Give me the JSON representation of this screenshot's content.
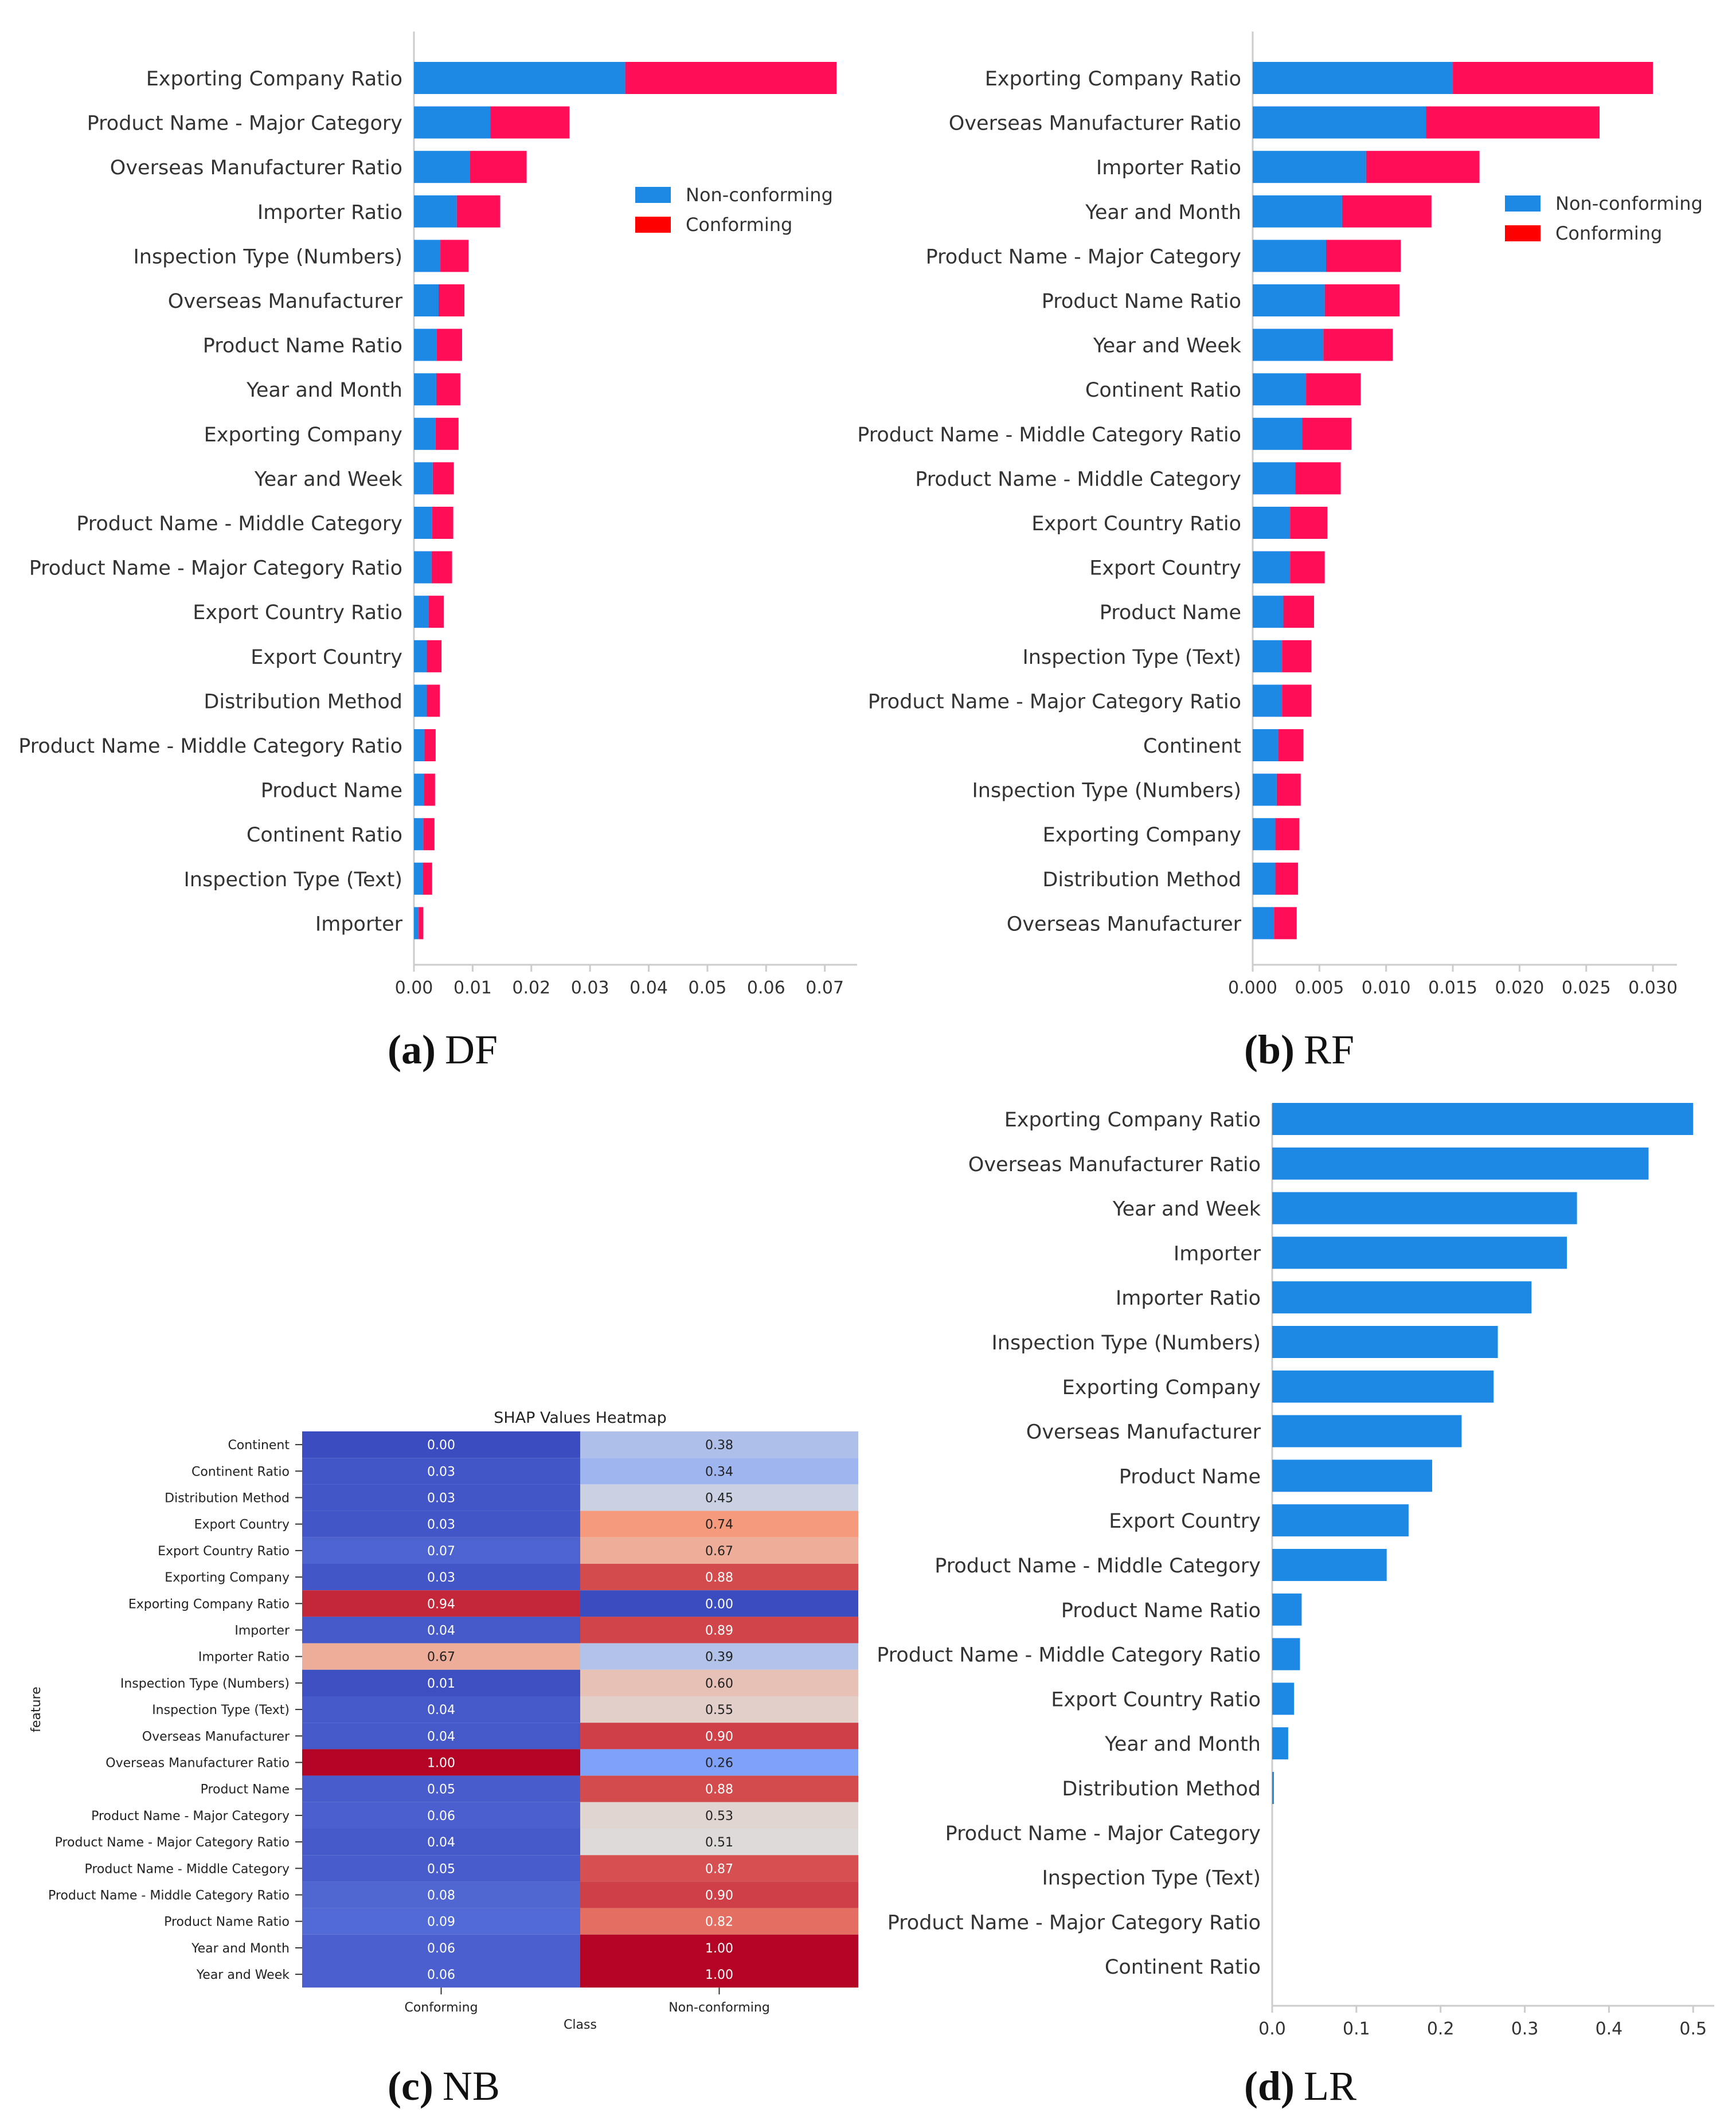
{
  "panels": {
    "a": {
      "tag": "(a)",
      "name": "DF"
    },
    "b": {
      "tag": "(b)",
      "name": "RF"
    },
    "c": {
      "tag": "(c)",
      "name": "NB"
    },
    "d": {
      "tag": "(d)",
      "name": "LR"
    }
  },
  "colors": {
    "non_conforming": "#1e88e5",
    "conforming": "#ff0d57",
    "legend_conforming": "#ff0000",
    "lr_bar": "#1e88e5",
    "axis": "#cccccc",
    "text": "#333333"
  },
  "chart_data": [
    {
      "id": "df",
      "type": "bar",
      "orientation": "horizontal",
      "stacked": true,
      "categories": [
        "Exporting Company Ratio",
        "Product Name - Major Category",
        "Overseas Manufacturer Ratio",
        "Importer Ratio",
        "Inspection Type (Numbers)",
        "Overseas Manufacturer",
        "Product Name Ratio",
        "Year and Month",
        "Exporting Company",
        "Year and Week",
        "Product Name - Middle Category",
        "Product Name - Major Category Ratio",
        "Export Country Ratio",
        "Export Country",
        "Distribution Method",
        "Product Name - Middle Category Ratio",
        "Product Name",
        "Continent Ratio",
        "Inspection Type (Text)",
        "Importer"
      ],
      "series": [
        {
          "name": "Non-conforming",
          "values": [
            0.036,
            0.013,
            0.0095,
            0.0073,
            0.0045,
            0.0042,
            0.0039,
            0.0038,
            0.0037,
            0.0032,
            0.0031,
            0.003,
            0.0025,
            0.0022,
            0.0022,
            0.0018,
            0.0017,
            0.0016,
            0.0015,
            0.0008
          ]
        },
        {
          "name": "Conforming",
          "values": [
            0.036,
            0.0135,
            0.0097,
            0.0074,
            0.0048,
            0.0044,
            0.0043,
            0.0041,
            0.0039,
            0.0036,
            0.0036,
            0.0035,
            0.0026,
            0.0025,
            0.0022,
            0.0019,
            0.0019,
            0.0019,
            0.0016,
            0.0008
          ]
        }
      ],
      "xticks": [
        "0.00",
        "0.01",
        "0.02",
        "0.03",
        "0.04",
        "0.05",
        "0.06",
        "0.07"
      ],
      "xlim": [
        0,
        0.0755
      ],
      "legend": [
        "Non-conforming",
        "Conforming"
      ],
      "legend_position": "top-right"
    },
    {
      "id": "rf",
      "type": "bar",
      "orientation": "horizontal",
      "stacked": true,
      "categories": [
        "Exporting Company Ratio",
        "Overseas Manufacturer Ratio",
        "Importer Ratio",
        "Year and Month",
        "Product Name - Major Category",
        "Product Name Ratio",
        "Year and Week",
        "Continent Ratio",
        "Product Name - Middle Category Ratio",
        "Product Name - Middle Category",
        "Export Country Ratio",
        "Export Country",
        "Product Name",
        "Inspection Type (Text)",
        "Product Name - Major Category Ratio",
        "Continent",
        "Inspection Type (Numbers)",
        "Exporting Company",
        "Distribution Method",
        "Overseas Manufacturer"
      ],
      "series": [
        {
          "name": "Non-conforming",
          "values": [
            0.015,
            0.013,
            0.0085,
            0.0067,
            0.0055,
            0.0054,
            0.0053,
            0.004,
            0.0037,
            0.0032,
            0.0028,
            0.0028,
            0.0023,
            0.0022,
            0.0022,
            0.0019,
            0.0018,
            0.0017,
            0.0017,
            0.0016
          ]
        },
        {
          "name": "Conforming",
          "values": [
            0.015,
            0.013,
            0.0085,
            0.0067,
            0.0056,
            0.0056,
            0.0052,
            0.0041,
            0.0037,
            0.0034,
            0.0028,
            0.0026,
            0.0023,
            0.0022,
            0.0022,
            0.0019,
            0.0018,
            0.0018,
            0.0017,
            0.0017
          ]
        }
      ],
      "xticks": [
        "0.000",
        "0.005",
        "0.010",
        "0.015",
        "0.020",
        "0.025",
        "0.030"
      ],
      "xlim": [
        0,
        0.0318
      ],
      "legend": [
        "Non-conforming",
        "Conforming"
      ],
      "legend_position": "top-right"
    },
    {
      "id": "nb",
      "type": "heatmap",
      "title": "SHAP Values Heatmap",
      "xlabel": "Class",
      "ylabel": "feature",
      "columns": [
        "Conforming",
        "Non-conforming"
      ],
      "rows": [
        "Continent",
        "Continent Ratio",
        "Distribution Method",
        "Export Country",
        "Export Country Ratio",
        "Exporting Company",
        "Exporting Company Ratio",
        "Importer",
        "Importer Ratio",
        "Inspection Type (Numbers)",
        "Inspection Type (Text)",
        "Overseas Manufacturer",
        "Overseas Manufacturer Ratio",
        "Product Name",
        "Product Name - Major Category",
        "Product Name - Major Category Ratio",
        "Product Name - Middle Category",
        "Product Name - Middle Category Ratio",
        "Product Name Ratio",
        "Year and Month",
        "Year and Week"
      ],
      "values": [
        [
          "0.00",
          "0.38"
        ],
        [
          "0.03",
          "0.34"
        ],
        [
          "0.03",
          "0.45"
        ],
        [
          "0.03",
          "0.74"
        ],
        [
          "0.07",
          "0.67"
        ],
        [
          "0.03",
          "0.88"
        ],
        [
          "0.94",
          "0.00"
        ],
        [
          "0.04",
          "0.89"
        ],
        [
          "0.67",
          "0.39"
        ],
        [
          "0.01",
          "0.60"
        ],
        [
          "0.04",
          "0.55"
        ],
        [
          "0.04",
          "0.90"
        ],
        [
          "1.00",
          "0.26"
        ],
        [
          "0.05",
          "0.88"
        ],
        [
          "0.06",
          "0.53"
        ],
        [
          "0.04",
          "0.51"
        ],
        [
          "0.05",
          "0.87"
        ],
        [
          "0.08",
          "0.90"
        ],
        [
          "0.09",
          "0.82"
        ],
        [
          "0.06",
          "1.00"
        ],
        [
          "0.06",
          "1.00"
        ]
      ],
      "colormap": "coolwarm"
    },
    {
      "id": "lr",
      "type": "bar",
      "orientation": "horizontal",
      "categories": [
        "Exporting Company Ratio",
        "Overseas Manufacturer Ratio",
        "Year and Week",
        "Importer",
        "Importer Ratio",
        "Inspection Type (Numbers)",
        "Exporting Company",
        "Overseas Manufacturer",
        "Product Name",
        "Export Country",
        "Product Name - Middle Category",
        "Product Name Ratio",
        "Product Name - Middle Category Ratio",
        "Export Country Ratio",
        "Year and Month",
        "Distribution Method",
        "Product Name - Major Category",
        "Inspection Type (Text)",
        "Product Name - Major Category Ratio",
        "Continent Ratio"
      ],
      "values": [
        0.5,
        0.447,
        0.362,
        0.35,
        0.308,
        0.268,
        0.263,
        0.225,
        0.19,
        0.162,
        0.136,
        0.035,
        0.033,
        0.026,
        0.019,
        0.002,
        0,
        0,
        0,
        0
      ],
      "xticks": [
        "0.0",
        "0.1",
        "0.2",
        "0.3",
        "0.4",
        "0.5"
      ],
      "xlim": [
        0,
        0.525
      ]
    }
  ]
}
